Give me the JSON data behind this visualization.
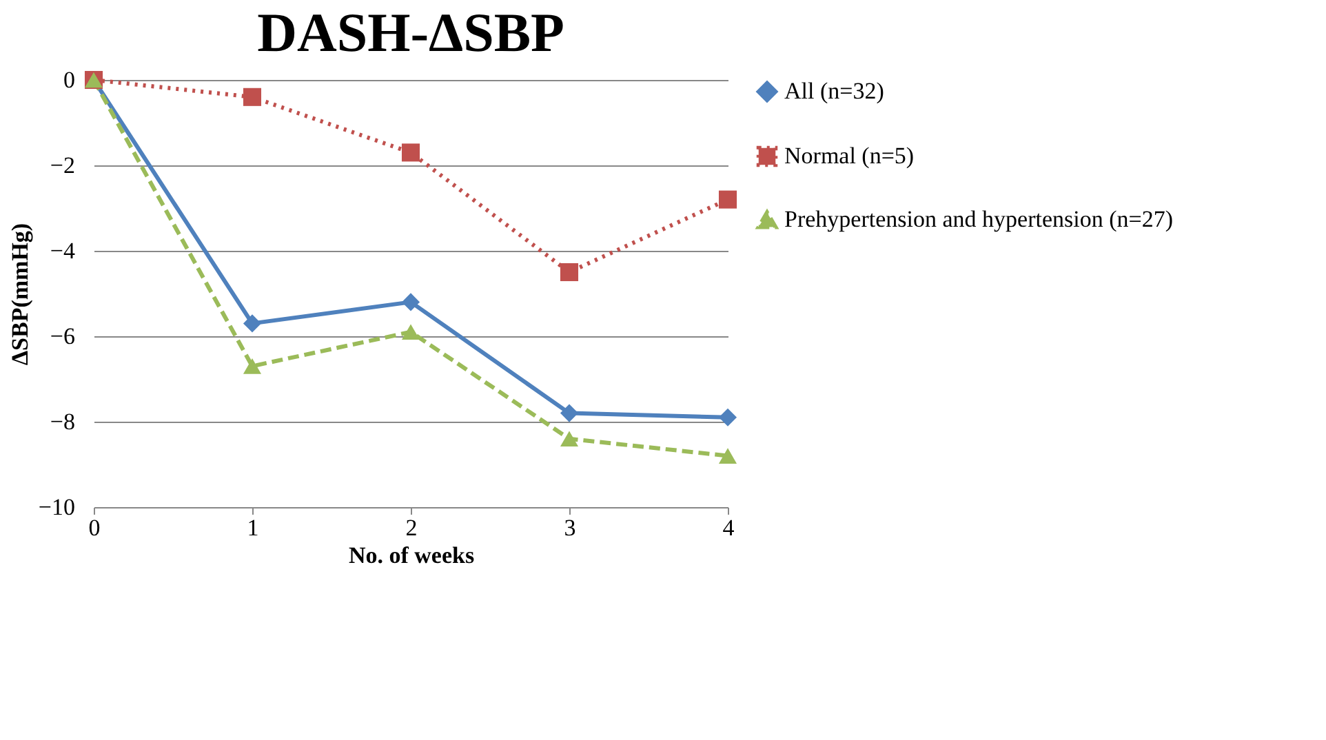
{
  "chart_data": {
    "type": "line",
    "title": "DASH-ΔSBP",
    "xlabel": "No. of weeks",
    "ylabel": "ΔSBP(mmHg)",
    "x": [
      0,
      1,
      2,
      3,
      4
    ],
    "xlim": [
      0,
      4
    ],
    "xticks": [
      0,
      1,
      2,
      3,
      4
    ],
    "ylim": [
      -10,
      0
    ],
    "yticks": [
      -10,
      -8,
      -6,
      -4,
      -2,
      0
    ],
    "grid": "y",
    "legend": "right",
    "series": [
      {
        "name": "All (n=32)",
        "color": "#4f81bd",
        "marker": "diamond",
        "line_style": "solid",
        "values": [
          0,
          -5.7,
          -5.2,
          -7.8,
          -7.9
        ]
      },
      {
        "name": "Normal (n=5)",
        "color": "#c0504d",
        "marker": "square",
        "line_style": "dotted",
        "values": [
          0,
          -0.4,
          -1.7,
          -4.5,
          -2.8
        ]
      },
      {
        "name": "Prehypertension and hypertension (n=27)",
        "color": "#9bbb59",
        "marker": "triangle",
        "line_style": "dashed",
        "values": [
          0,
          -6.7,
          -5.9,
          -8.4,
          -8.8
        ]
      }
    ]
  }
}
